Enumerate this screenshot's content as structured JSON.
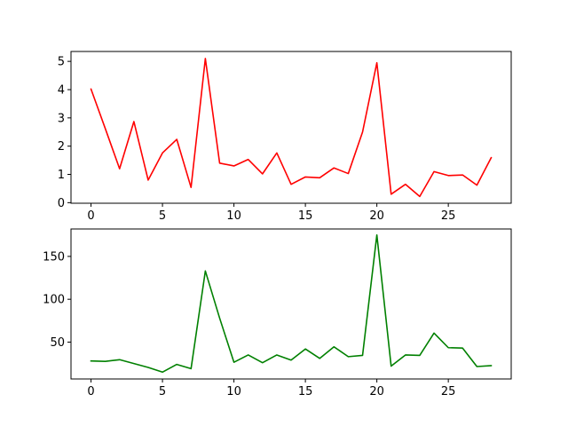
{
  "chart_data": [
    {
      "type": "line",
      "title": "",
      "xlabel": "",
      "ylabel": "",
      "xlim": [
        -1.4,
        29.4
      ],
      "ylim": [
        -0.02,
        5.35
      ],
      "xticks": [
        0,
        5,
        10,
        15,
        20,
        25
      ],
      "yticks": [
        0,
        1,
        2,
        3,
        4,
        5
      ],
      "grid": false,
      "legend": "none",
      "series": [
        {
          "color": "#ff0000",
          "x": [
            0,
            1,
            2,
            3,
            4,
            5,
            6,
            7,
            8,
            9,
            10,
            11,
            12,
            13,
            14,
            15,
            16,
            17,
            18,
            19,
            20,
            21,
            22,
            23,
            24,
            25,
            26,
            27,
            28
          ],
          "values": [
            4.02,
            2.62,
            1.2,
            2.87,
            0.8,
            1.76,
            2.24,
            0.54,
            5.1,
            1.4,
            1.3,
            1.53,
            1.02,
            1.76,
            0.65,
            0.91,
            0.88,
            1.23,
            1.03,
            2.5,
            4.95,
            0.3,
            0.65,
            0.22,
            1.1,
            0.96,
            0.98,
            0.62,
            1.59
          ]
        }
      ]
    },
    {
      "type": "line",
      "title": "",
      "xlabel": "",
      "ylabel": "",
      "xlim": [
        -1.4,
        29.4
      ],
      "ylim": [
        7,
        182
      ],
      "xticks": [
        0,
        5,
        10,
        15,
        20,
        25
      ],
      "yticks": [
        50,
        100,
        150
      ],
      "grid": false,
      "legend": "none",
      "series": [
        {
          "color": "#008000",
          "x": [
            0,
            1,
            2,
            3,
            4,
            5,
            6,
            7,
            8,
            9,
            10,
            11,
            12,
            13,
            14,
            15,
            16,
            17,
            18,
            19,
            20,
            21,
            22,
            23,
            24,
            25,
            26,
            27,
            28
          ],
          "values": [
            28,
            27.5,
            29.5,
            25,
            20.5,
            15,
            24,
            19,
            133,
            78,
            26.5,
            35,
            26,
            35,
            29,
            42,
            31,
            44.5,
            33,
            34.5,
            175,
            22,
            35,
            34.5,
            60.5,
            43.5,
            43,
            21.5,
            22.5
          ]
        }
      ]
    }
  ]
}
